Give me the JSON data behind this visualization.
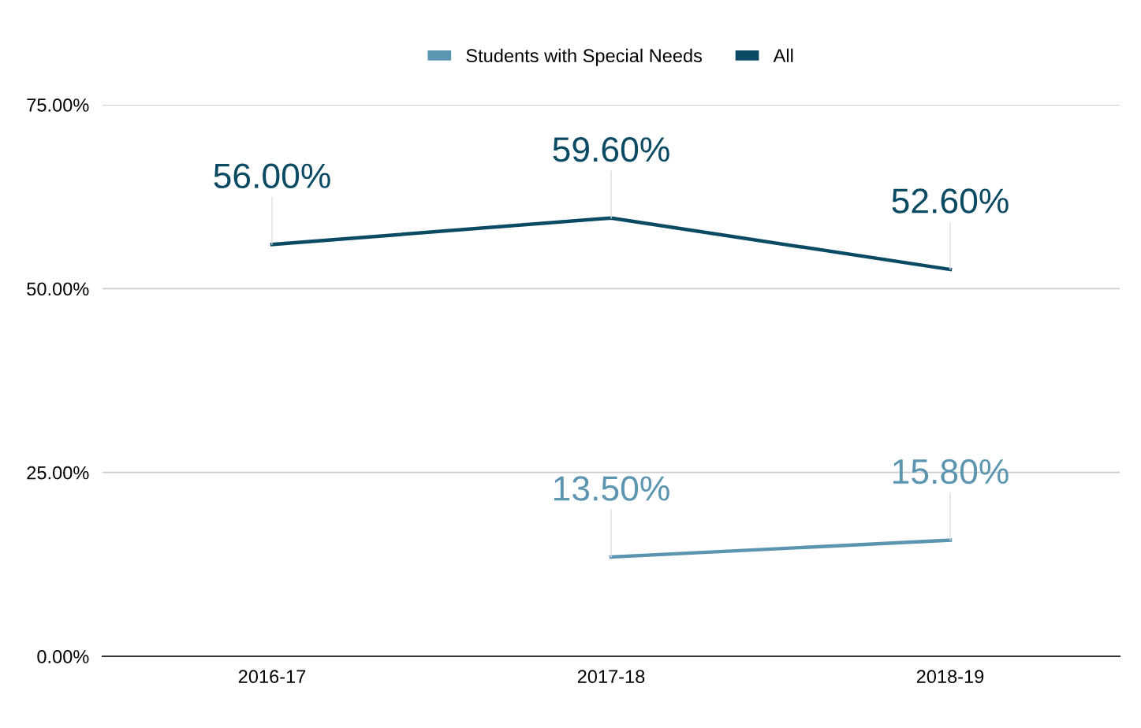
{
  "chart_data": {
    "type": "line",
    "categories": [
      "2016-17",
      "2017-18",
      "2018-19"
    ],
    "series": [
      {
        "name": "Students with Special Needs",
        "color": "#5b95b0",
        "values": [
          null,
          13.5,
          15.8
        ],
        "value_labels": [
          null,
          "13.50%",
          "15.80%"
        ]
      },
      {
        "name": "All",
        "color": "#0b4a63",
        "values": [
          56.0,
          59.6,
          52.6
        ],
        "value_labels": [
          "56.00%",
          "59.60%",
          "52.60%"
        ]
      }
    ],
    "ylim": [
      0,
      75
    ],
    "yticks": [
      {
        "value": 0,
        "label": "0.00%"
      },
      {
        "value": 25,
        "label": "25.00%"
      },
      {
        "value": 50,
        "label": "50.00%"
      },
      {
        "value": 75,
        "label": "75.00%"
      }
    ],
    "grid": "y",
    "legend": "top",
    "marker": "none",
    "line_style": "solid"
  }
}
